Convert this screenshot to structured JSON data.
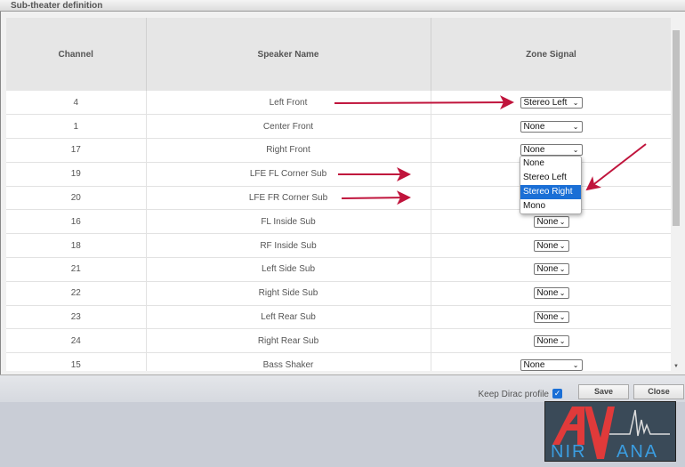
{
  "window": {
    "title": "Sub-theater definition"
  },
  "table": {
    "headers": [
      "Channel",
      "Speaker Name",
      "Zone Signal"
    ],
    "rows": [
      {
        "channel": "4",
        "name": "Left Front",
        "signal": "Stereo Left",
        "wide": true
      },
      {
        "channel": "1",
        "name": "Center Front",
        "signal": "None",
        "wide": true
      },
      {
        "channel": "17",
        "name": "Right Front",
        "signal": "None",
        "wide": true
      },
      {
        "channel": "19",
        "name": "LFE FL Corner Sub",
        "signal": "",
        "wide": false
      },
      {
        "channel": "20",
        "name": "LFE FR Corner Sub",
        "signal": "",
        "wide": false
      },
      {
        "channel": "16",
        "name": "FL Inside Sub",
        "signal": "None",
        "wide": false
      },
      {
        "channel": "18",
        "name": "RF Inside Sub",
        "signal": "None",
        "wide": false
      },
      {
        "channel": "21",
        "name": "Left Side Sub",
        "signal": "None",
        "wide": false
      },
      {
        "channel": "22",
        "name": "Right Side Sub",
        "signal": "None",
        "wide": false
      },
      {
        "channel": "23",
        "name": "Left Rear Sub",
        "signal": "None",
        "wide": false
      },
      {
        "channel": "24",
        "name": "Right Rear Sub",
        "signal": "None",
        "wide": false
      },
      {
        "channel": "15",
        "name": "Bass Shaker",
        "signal": "None",
        "wide": true
      }
    ]
  },
  "dropdown": {
    "options": [
      "None",
      "Stereo Left",
      "Stereo Right",
      "Mono"
    ],
    "highlighted": "Stereo Right"
  },
  "footer": {
    "keep_label": "Keep Dirac profile",
    "keep_checked": true,
    "save": "Save",
    "close": "Close"
  },
  "logo": {
    "text": "AV NIRVANA"
  },
  "colors": {
    "arrow": "#c0143c",
    "highlight": "#1a6fd6"
  }
}
